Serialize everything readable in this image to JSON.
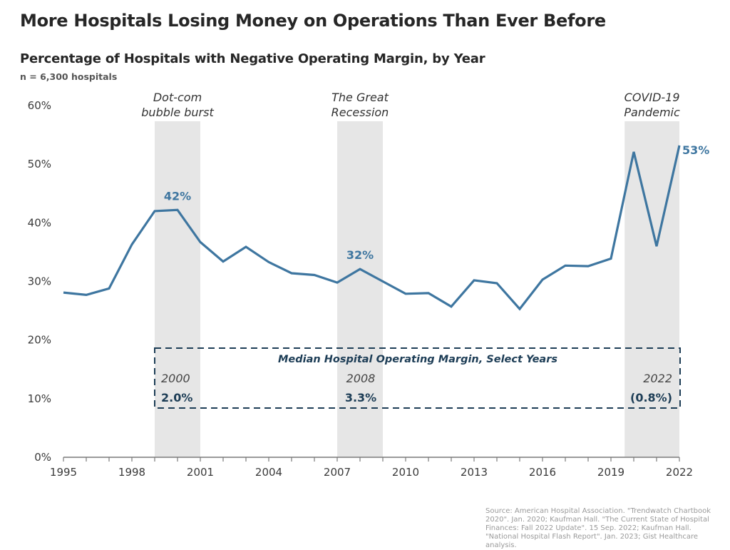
{
  "header": {
    "title": "More Hospitals Losing Money on Operations Than Ever Before",
    "subtitle": "Percentage of Hospitals with Negative Operating Margin, by Year",
    "note": "n = 6,300 hospitals"
  },
  "source": "Source: American Hospital Association. \"Trendwatch Chartbook 2020\". Jan. 2020; Kaufman Hall. \"The Current State of Hospital Finances: Fall 2022 Update\". 15 Sep. 2022; Kaufman Hall. \"National Hospital Flash Report\". Jan. 2023; Gist Healthcare analysis.",
  "colors": {
    "line": "#3e76a0",
    "shade": "#e6e6e6",
    "median_box": "#1d3d56",
    "axis": "#7a7a7a"
  },
  "chart_data": {
    "type": "line",
    "title": "Percentage of Hospitals with Negative Operating Margin, by Year",
    "xlabel": "",
    "ylabel": "",
    "ylim": [
      0,
      60
    ],
    "xlim": [
      1995,
      2022
    ],
    "grid": false,
    "y_ticks": [
      0,
      10,
      20,
      30,
      40,
      50,
      60
    ],
    "y_tick_labels": [
      "0%",
      "10%",
      "20%",
      "30%",
      "40%",
      "50%",
      "60%"
    ],
    "x_ticks": [
      1995,
      1998,
      2001,
      2004,
      2007,
      2010,
      2013,
      2016,
      2019,
      2022
    ],
    "x_tick_labels": [
      "1995",
      "1998",
      "2001",
      "2004",
      "2007",
      "2010",
      "2013",
      "2016",
      "2019",
      "2022"
    ],
    "x": [
      1995,
      1996,
      1997,
      1998,
      1999,
      2000,
      2001,
      2002,
      2003,
      2004,
      2005,
      2006,
      2007,
      2008,
      2009,
      2010,
      2011,
      2012,
      2013,
      2014,
      2015,
      2016,
      2017,
      2018,
      2019,
      2020,
      2021,
      2022
    ],
    "series": [
      {
        "name": "Hospitals with negative operating margin (%)",
        "values": [
          28.1,
          27.7,
          28.8,
          36.3,
          42.0,
          42.2,
          36.7,
          33.4,
          35.9,
          33.3,
          31.4,
          31.1,
          29.8,
          32.1,
          30.0,
          27.9,
          28.0,
          25.7,
          30.2,
          29.7,
          25.3,
          30.3,
          32.7,
          32.6,
          33.9,
          52.1,
          36.0,
          53.2
        ]
      }
    ],
    "data_labels": [
      {
        "x": 2000,
        "y": 42.2,
        "text": "42%"
      },
      {
        "x": 2008,
        "y": 32.1,
        "text": "32%"
      },
      {
        "x": 2022,
        "y": 53.2,
        "text": "53%"
      }
    ],
    "shaded_periods": [
      {
        "start": 1999,
        "end": 2001,
        "label_line1": "Dot-com",
        "label_line2": "bubble burst"
      },
      {
        "start": 2007,
        "end": 2009,
        "label_line1": "The Great",
        "label_line2": "Recession"
      },
      {
        "start": 2019.6,
        "end": 2022,
        "label_line1": "COVID-19",
        "label_line2": "Pandemic"
      }
    ],
    "median_box": {
      "title": "Median Hospital Operating Margin, Select Years",
      "entries": [
        {
          "year": "2000",
          "value": "2.0%"
        },
        {
          "year": "2008",
          "value": "3.3%"
        },
        {
          "year": "2022",
          "value": "(0.8%)"
        }
      ]
    }
  }
}
